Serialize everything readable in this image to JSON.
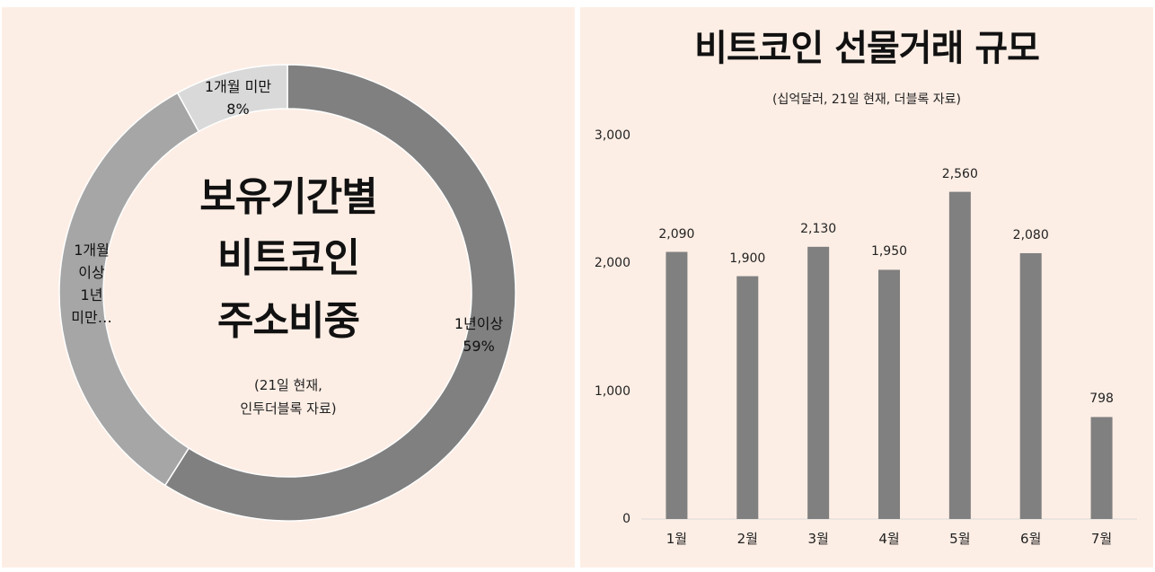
{
  "chart_data": [
    {
      "type": "pie",
      "title": "보유기간별 비트코인 주소비중",
      "title_lines": [
        "보유기간별",
        "비트코인",
        "주소비중"
      ],
      "note_lines": [
        "(21일 현재,",
        "인투더블록 자료)"
      ],
      "slices": [
        {
          "label_lines": [
            "1년이상",
            "59%"
          ],
          "value": 59,
          "color": "#808080"
        },
        {
          "label_lines": [
            "1개월",
            "이상",
            "1년",
            "미만…"
          ],
          "value": 33,
          "color": "#a6a6a6"
        },
        {
          "label_lines": [
            "1개월 미만",
            "8%"
          ],
          "value": 8,
          "color": "#d9d9d9"
        }
      ]
    },
    {
      "type": "bar",
      "title": "비트코인 선물거래 규모",
      "subtitle": "(십억달러, 21일 현재, 더블록 자료)",
      "categories": [
        "1월",
        "2월",
        "3월",
        "4월",
        "5월",
        "6월",
        "7월"
      ],
      "values": [
        2090,
        1900,
        2130,
        1950,
        2560,
        2080,
        798
      ],
      "value_labels": [
        "2,090",
        "1,900",
        "2,130",
        "1,950",
        "2,560",
        "2,080",
        "798"
      ],
      "ylim": [
        0,
        3000
      ],
      "yticks": [
        {
          "value": 0,
          "label": "0"
        },
        {
          "value": 1000,
          "label": "1,000"
        },
        {
          "value": 2000,
          "label": "2,000"
        },
        {
          "value": 3000,
          "label": "3,000"
        }
      ],
      "bar_color": "#808080",
      "grid": false
    }
  ]
}
